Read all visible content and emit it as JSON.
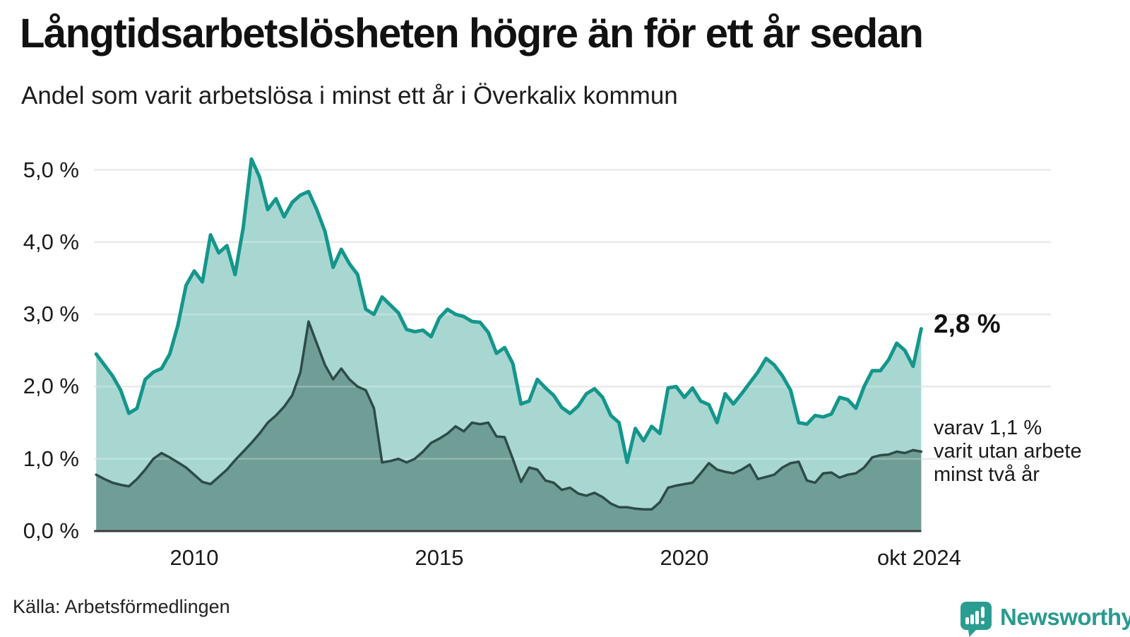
{
  "header": {
    "title": "Långtidsarbetslösheten högre än för ett år sedan",
    "subtitle": "Andel som varit arbetslösa i minst ett år i Överkalix kommun"
  },
  "footer": {
    "source_label": "Källa: Arbetsförmedlingen",
    "logo_text": "Newsworthy",
    "logo_icon": "newsworthy-speech-bubble-bar-chart-icon"
  },
  "annotations": {
    "current_value_label": "2,8 %",
    "current_value": 2.8,
    "secondary_label": "varav 1,1 %\nvarit utan arbete\nminst två år",
    "secondary_value": 1.1
  },
  "colors": {
    "series_one_year_line": "#14968b",
    "series_one_year_fill": "#a8d7d1",
    "series_two_years_line": "#2e4b47",
    "series_two_years_fill": "#6f9e97",
    "grid": "#e3e3e7",
    "axis": "#3c3c3c",
    "logo_teal": "#2a9d92",
    "text": "#1a1a1a"
  },
  "chart_data": {
    "type": "area",
    "title": "Långtidsarbetslösheten högre än för ett år sedan",
    "subtitle": "Andel som varit arbetslösa i minst ett år i Överkalix kommun",
    "xlabel": "",
    "ylabel": "",
    "x_unit": "decimal_year_monthly",
    "x_start": 2008.0,
    "x_step": 0.16667,
    "x_end": 2024.833,
    "ylim": [
      0,
      5.35
    ],
    "grid": "horizontal",
    "legend_position": "right-annotations",
    "y_ticks": [
      {
        "label": "5,0 %",
        "value": 5.0
      },
      {
        "label": "4,0 %",
        "value": 4.0
      },
      {
        "label": "3,0 %",
        "value": 3.0
      },
      {
        "label": "2,0 %",
        "value": 2.0
      },
      {
        "label": "1,0 %",
        "value": 1.0
      },
      {
        "label": "0,0 %",
        "value": 0.0
      }
    ],
    "x_ticks": [
      {
        "label": "2010",
        "year": 2010
      },
      {
        "label": "2015",
        "year": 2015
      },
      {
        "label": "2020",
        "year": 2020
      },
      {
        "label": "okt 2024",
        "year": 2024.79
      }
    ],
    "series": [
      {
        "name": "Arbetslösa minst ett år",
        "values": [
          2.45,
          2.3,
          2.15,
          1.95,
          1.63,
          1.7,
          2.1,
          2.2,
          2.25,
          2.45,
          2.85,
          3.4,
          3.6,
          3.45,
          4.1,
          3.85,
          3.95,
          3.55,
          4.2,
          5.15,
          4.9,
          4.45,
          4.6,
          4.35,
          4.55,
          4.65,
          4.7,
          4.45,
          4.15,
          3.65,
          3.9,
          3.7,
          3.55,
          3.07,
          3.0,
          3.24,
          3.13,
          3.02,
          2.79,
          2.76,
          2.78,
          2.69,
          2.95,
          3.07,
          3.0,
          2.97,
          2.9,
          2.89,
          2.75,
          2.46,
          2.54,
          2.32,
          1.76,
          1.8,
          2.1,
          1.98,
          1.88,
          1.71,
          1.63,
          1.73,
          1.9,
          1.97,
          1.85,
          1.6,
          1.5,
          0.95,
          1.42,
          1.25,
          1.45,
          1.35,
          1.98,
          2.0,
          1.85,
          1.98,
          1.8,
          1.75,
          1.5,
          1.9,
          1.76,
          1.9,
          2.05,
          2.2,
          2.39,
          2.3,
          2.15,
          1.95,
          1.5,
          1.48,
          1.6,
          1.58,
          1.62,
          1.85,
          1.82,
          1.7,
          2.0,
          2.22,
          2.22,
          2.37,
          2.6,
          2.5,
          2.28,
          2.8
        ]
      },
      {
        "name": "varav utan arbete minst två år",
        "values": [
          0.78,
          0.72,
          0.67,
          0.64,
          0.62,
          0.72,
          0.85,
          1.0,
          1.08,
          1.02,
          0.95,
          0.88,
          0.78,
          0.68,
          0.65,
          0.75,
          0.85,
          0.98,
          1.1,
          1.22,
          1.35,
          1.5,
          1.6,
          1.72,
          1.88,
          2.2,
          2.9,
          2.6,
          2.3,
          2.1,
          2.25,
          2.1,
          2.0,
          1.95,
          1.7,
          0.95,
          0.97,
          1.0,
          0.95,
          1.0,
          1.1,
          1.22,
          1.28,
          1.35,
          1.45,
          1.38,
          1.5,
          1.48,
          1.5,
          1.31,
          1.3,
          1.0,
          0.68,
          0.88,
          0.85,
          0.7,
          0.67,
          0.57,
          0.6,
          0.52,
          0.49,
          0.53,
          0.47,
          0.38,
          0.33,
          0.33,
          0.31,
          0.3,
          0.3,
          0.4,
          0.6,
          0.63,
          0.65,
          0.67,
          0.8,
          0.94,
          0.85,
          0.82,
          0.8,
          0.85,
          0.92,
          0.72,
          0.75,
          0.78,
          0.88,
          0.94,
          0.96,
          0.7,
          0.67,
          0.8,
          0.81,
          0.74,
          0.78,
          0.8,
          0.88,
          1.02,
          1.05,
          1.06,
          1.1,
          1.08,
          1.12,
          1.1
        ]
      }
    ],
    "last_point": {
      "one_year": 2.8,
      "two_years": 1.1,
      "x_label": "okt 2024"
    }
  }
}
